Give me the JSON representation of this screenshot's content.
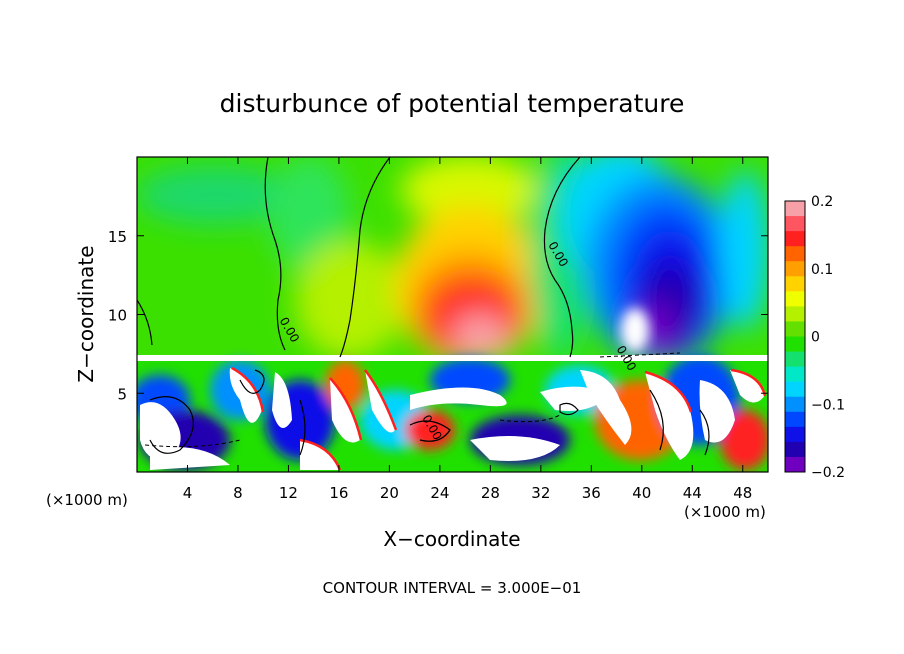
{
  "chart_data": {
    "type": "heatmap",
    "title": "disturbunce of potential temperature",
    "xlabel": "X−coordinate",
    "ylabel": "Z−coordinate",
    "x_unit_label": "(×1000 m)",
    "z_unit_label": "(×1000 m)",
    "xlim": [
      0,
      50
    ],
    "ylim": [
      0,
      20
    ],
    "x_ticks": [
      4,
      8,
      12,
      16,
      20,
      24,
      28,
      32,
      36,
      40,
      44,
      48
    ],
    "y_ticks": [
      5,
      10,
      15
    ],
    "x_tick_labels": [
      "4",
      "8",
      "12",
      "16",
      "20",
      "24",
      "28",
      "32",
      "36",
      "40",
      "44",
      "48"
    ],
    "y_tick_labels": [
      "5",
      "10",
      "15"
    ],
    "contour_labels": [
      {
        "text": "0.00",
        "x": 11.8,
        "z": 8.9
      },
      {
        "text": "0.00",
        "x": 33.1,
        "z": 13.7
      },
      {
        "text": "0.00",
        "x": 38.5,
        "z": 7.1
      },
      {
        "text": "0.00",
        "x": 23.1,
        "z": 2.7
      }
    ],
    "colorbar": {
      "range": [
        -0.2,
        0.2
      ],
      "tick_values": [
        0.2,
        0.1,
        0,
        -0.1,
        -0.2
      ],
      "tick_labels": [
        "0.2",
        "0.1",
        "0",
        "−0.1",
        "−0.2"
      ],
      "colors": [
        "#f8a0a8",
        "#ff5560",
        "#ff2020",
        "#ff6400",
        "#ffa000",
        "#ffd200",
        "#f0ff00",
        "#b4f000",
        "#64e000",
        "#20e000",
        "#14e070",
        "#00e8c8",
        "#00d4ff",
        "#0090ff",
        "#0048ff",
        "#1010e8",
        "#2000b0",
        "#7000c0"
      ]
    },
    "annotation": "CONTOUR INTERVAL = 3.000E−01"
  }
}
